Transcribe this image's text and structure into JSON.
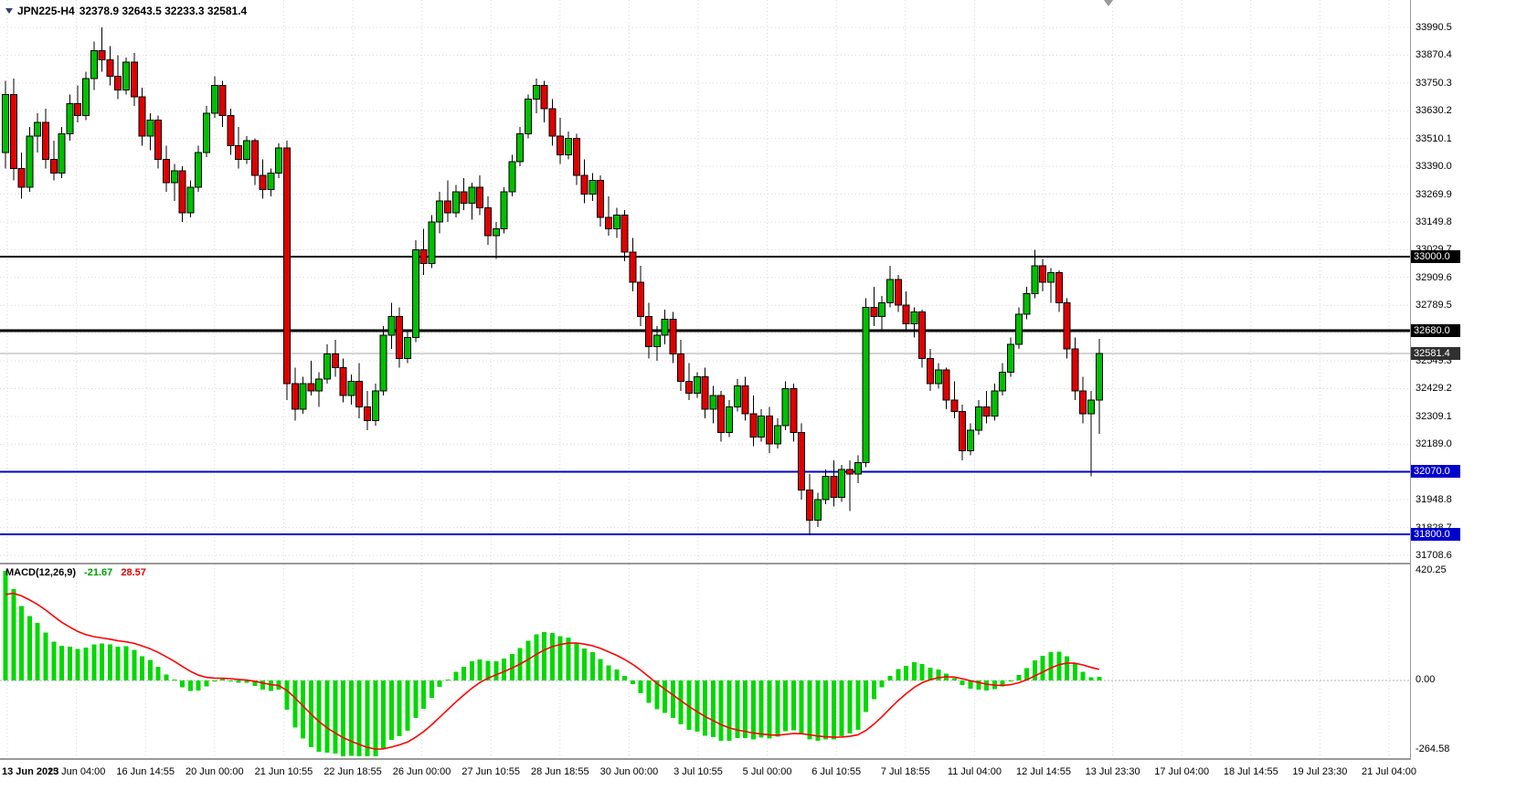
{
  "header": {
    "symbol_period": "JPN225-H4",
    "ohlc_text": "32378.9 32643.5 32233.3 32581.4",
    "open": "32378.9",
    "high": "32643.5",
    "low": "32233.3",
    "close": "32581.4"
  },
  "chart_data": {
    "type": "candlestick",
    "symbol": "JPN225",
    "timeframe": "H4",
    "price_axis": {
      "ticks": [
        33990.5,
        33870.4,
        33750.3,
        33630.2,
        33510.1,
        33390.0,
        33269.9,
        33149.8,
        33029.7,
        32909.6,
        32789.5,
        32669.4,
        32549.3,
        32429.2,
        32309.1,
        32189.0,
        32068.9,
        31948.8,
        31828.7,
        31708.6
      ]
    },
    "time_axis": {
      "labels": [
        "13 Jun 2023",
        "15 Jun 04:00",
        "16 Jun 14:55",
        "20 Jun 00:00",
        "21 Jun 10:55",
        "22 Jun 18:55",
        "26 Jun 00:00",
        "27 Jun 10:55",
        "28 Jun 18:55",
        "30 Jun 00:00",
        "3 Jul 10:55",
        "5 Jul 00:00",
        "6 Jul 10:55",
        "7 Jul 18:55",
        "11 Jul 04:00",
        "12 Jul 14:55",
        "13 Jul 23:30",
        "17 Jul 04:00",
        "18 Jul 14:55",
        "19 Jul 23:30",
        "21 Jul 04:00"
      ]
    },
    "hlines": [
      {
        "value": 33000.0,
        "label": "33000.0",
        "line_color": "#000000",
        "line_width": 2,
        "label_bg": "#000000"
      },
      {
        "value": 32680.0,
        "label": "32680.0",
        "line_color": "#000000",
        "line_width": 3,
        "label_bg": "#000000"
      },
      {
        "value": 32581.4,
        "label": "32581.4",
        "line_color": "#a8a8a8",
        "line_width": 1,
        "label_bg": "#303030",
        "role": "last-price"
      },
      {
        "value": 32070.0,
        "label": "32070.0",
        "line_color": "#0000cc",
        "line_width": 2,
        "label_bg": "#0000cc"
      },
      {
        "value": 31800.0,
        "label": "31800.0",
        "line_color": "#0000cc",
        "line_width": 2,
        "label_bg": "#0000cc"
      }
    ],
    "candles": [
      [
        33450,
        33760,
        33380,
        33700
      ],
      [
        33700,
        33770,
        33330,
        33380
      ],
      [
        33380,
        33450,
        33250,
        33300
      ],
      [
        33300,
        33560,
        33280,
        33520
      ],
      [
        33520,
        33620,
        33450,
        33580
      ],
      [
        33580,
        33640,
        33380,
        33420
      ],
      [
        33420,
        33500,
        33330,
        33360
      ],
      [
        33360,
        33560,
        33340,
        33530
      ],
      [
        33530,
        33700,
        33500,
        33660
      ],
      [
        33660,
        33740,
        33580,
        33610
      ],
      [
        33610,
        33800,
        33590,
        33770
      ],
      [
        33770,
        33930,
        33720,
        33890
      ],
      [
        33890,
        33990,
        33800,
        33850
      ],
      [
        33850,
        33910,
        33740,
        33780
      ],
      [
        33780,
        33870,
        33680,
        33720
      ],
      [
        33720,
        33860,
        33700,
        33840
      ],
      [
        33840,
        33880,
        33650,
        33690
      ],
      [
        33690,
        33730,
        33480,
        33520
      ],
      [
        33520,
        33620,
        33460,
        33590
      ],
      [
        33590,
        33610,
        33380,
        33420
      ],
      [
        33420,
        33480,
        33280,
        33320
      ],
      [
        33320,
        33400,
        33240,
        33370
      ],
      [
        33370,
        33390,
        33150,
        33190
      ],
      [
        33190,
        33330,
        33170,
        33300
      ],
      [
        33300,
        33480,
        33280,
        33450
      ],
      [
        33450,
        33650,
        33430,
        33620
      ],
      [
        33620,
        33780,
        33600,
        33740
      ],
      [
        33740,
        33760,
        33560,
        33610
      ],
      [
        33610,
        33640,
        33440,
        33480
      ],
      [
        33480,
        33560,
        33380,
        33420
      ],
      [
        33420,
        33520,
        33400,
        33500
      ],
      [
        33500,
        33510,
        33310,
        33350
      ],
      [
        33350,
        33420,
        33250,
        33290
      ],
      [
        33290,
        33380,
        33260,
        33360
      ],
      [
        33360,
        33490,
        33340,
        33470
      ],
      [
        33470,
        33500,
        32380,
        32450
      ],
      [
        32450,
        32520,
        32290,
        32340
      ],
      [
        32340,
        32480,
        32320,
        32450
      ],
      [
        32450,
        32550,
        32400,
        32420
      ],
      [
        32420,
        32500,
        32350,
        32470
      ],
      [
        32470,
        32620,
        32450,
        32580
      ],
      [
        32580,
        32640,
        32480,
        32520
      ],
      [
        32520,
        32560,
        32370,
        32400
      ],
      [
        32400,
        32490,
        32360,
        32460
      ],
      [
        32460,
        32540,
        32300,
        32350
      ],
      [
        32350,
        32420,
        32250,
        32290
      ],
      [
        32290,
        32450,
        32270,
        32420
      ],
      [
        32420,
        32700,
        32400,
        32660
      ],
      [
        32660,
        32800,
        32600,
        32740
      ],
      [
        32740,
        32780,
        32520,
        32560
      ],
      [
        32560,
        32680,
        32540,
        32650
      ],
      [
        32650,
        33070,
        32630,
        33030
      ],
      [
        33030,
        33120,
        32920,
        32970
      ],
      [
        32970,
        33180,
        32950,
        33150
      ],
      [
        33150,
        33280,
        33100,
        33240
      ],
      [
        33240,
        33330,
        33150,
        33190
      ],
      [
        33190,
        33310,
        33170,
        33280
      ],
      [
        33280,
        33340,
        33200,
        33230
      ],
      [
        33230,
        33320,
        33160,
        33300
      ],
      [
        33300,
        33350,
        33180,
        33210
      ],
      [
        33210,
        33260,
        33050,
        33090
      ],
      [
        33090,
        33150,
        32990,
        33120
      ],
      [
        33120,
        33300,
        33100,
        33280
      ],
      [
        33280,
        33440,
        33260,
        33410
      ],
      [
        33410,
        33560,
        33390,
        33530
      ],
      [
        33530,
        33700,
        33510,
        33680
      ],
      [
        33680,
        33770,
        33620,
        33740
      ],
      [
        33740,
        33760,
        33580,
        33640
      ],
      [
        33640,
        33680,
        33480,
        33520
      ],
      [
        33520,
        33600,
        33400,
        33440
      ],
      [
        33440,
        33540,
        33420,
        33510
      ],
      [
        33510,
        33530,
        33310,
        33350
      ],
      [
        33350,
        33420,
        33230,
        33270
      ],
      [
        33270,
        33360,
        33240,
        33330
      ],
      [
        33330,
        33350,
        33130,
        33170
      ],
      [
        33170,
        33260,
        33090,
        33120
      ],
      [
        33120,
        33210,
        33080,
        33180
      ],
      [
        33180,
        33200,
        32980,
        33020
      ],
      [
        33020,
        33080,
        32850,
        32890
      ],
      [
        32890,
        32960,
        32700,
        32740
      ],
      [
        32740,
        32800,
        32560,
        32610
      ],
      [
        32610,
        32700,
        32550,
        32660
      ],
      [
        32660,
        32770,
        32620,
        32730
      ],
      [
        32730,
        32760,
        32540,
        32580
      ],
      [
        32580,
        32640,
        32420,
        32460
      ],
      [
        32460,
        32540,
        32380,
        32410
      ],
      [
        32410,
        32500,
        32390,
        32480
      ],
      [
        32480,
        32520,
        32300,
        32340
      ],
      [
        32340,
        32440,
        32280,
        32400
      ],
      [
        32400,
        32420,
        32200,
        32240
      ],
      [
        32240,
        32380,
        32220,
        32350
      ],
      [
        32350,
        32470,
        32330,
        32440
      ],
      [
        32440,
        32480,
        32290,
        32320
      ],
      [
        32320,
        32400,
        32180,
        32220
      ],
      [
        32220,
        32340,
        32200,
        32310
      ],
      [
        32310,
        32350,
        32150,
        32190
      ],
      [
        32190,
        32300,
        32170,
        32270
      ],
      [
        32270,
        32460,
        32250,
        32430
      ],
      [
        32430,
        32450,
        32200,
        32240
      ],
      [
        32240,
        32280,
        31950,
        31990
      ],
      [
        31990,
        32060,
        31795,
        31860
      ],
      [
        31860,
        31980,
        31830,
        31950
      ],
      [
        31950,
        32080,
        31930,
        32050
      ],
      [
        32050,
        32120,
        31920,
        31960
      ],
      [
        31960,
        32100,
        31940,
        32080
      ],
      [
        32080,
        32120,
        31900,
        32060
      ],
      [
        32060,
        32140,
        32020,
        32110
      ],
      [
        32110,
        32820,
        32090,
        32780
      ],
      [
        32780,
        32870,
        32700,
        32740
      ],
      [
        32740,
        32830,
        32680,
        32800
      ],
      [
        32800,
        32960,
        32780,
        32900
      ],
      [
        32900,
        32920,
        32760,
        32790
      ],
      [
        32790,
        32850,
        32680,
        32710
      ],
      [
        32710,
        32780,
        32650,
        32760
      ],
      [
        32760,
        32770,
        32520,
        32560
      ],
      [
        32560,
        32600,
        32420,
        32450
      ],
      [
        32450,
        32540,
        32430,
        32510
      ],
      [
        32510,
        32520,
        32340,
        32380
      ],
      [
        32380,
        32460,
        32300,
        32330
      ],
      [
        32330,
        32360,
        32120,
        32160
      ],
      [
        32160,
        32280,
        32140,
        32250
      ],
      [
        32250,
        32380,
        32230,
        32350
      ],
      [
        32350,
        32420,
        32280,
        32310
      ],
      [
        32310,
        32450,
        32290,
        32420
      ],
      [
        32420,
        32540,
        32400,
        32500
      ],
      [
        32500,
        32650,
        32480,
        32620
      ],
      [
        32620,
        32780,
        32600,
        32750
      ],
      [
        32750,
        32870,
        32730,
        32840
      ],
      [
        32840,
        33030,
        32820,
        32960
      ],
      [
        32960,
        32990,
        32850,
        32890
      ],
      [
        32890,
        32950,
        32800,
        32930
      ],
      [
        32930,
        32940,
        32760,
        32800
      ],
      [
        32800,
        32820,
        32560,
        32600
      ],
      [
        32600,
        32650,
        32380,
        32420
      ],
      [
        32420,
        32480,
        32280,
        32320
      ],
      [
        32320,
        32420,
        32050,
        32380
      ],
      [
        32378.9,
        32643.5,
        32233.3,
        32581.4
      ]
    ],
    "macd": {
      "label": "MACD(12,26,9)",
      "value_text": "-21.67",
      "signal_text": "28.57",
      "fast": 12,
      "slow": 26,
      "signal_period": 9,
      "initial_macd": 420.25,
      "initial_signal": 330,
      "axis_values": [
        420.25,
        0,
        -264.58
      ],
      "axis_labels": [
        "420.25",
        "0.00",
        "-264.58"
      ]
    },
    "colors": {
      "background": "#ffffff",
      "grid": "#d9d9d9",
      "up": "#00bf00",
      "down": "#e00000",
      "outline": "#000000",
      "macd_histogram": "#00d800",
      "macd_signal": "#ff0000"
    }
  }
}
